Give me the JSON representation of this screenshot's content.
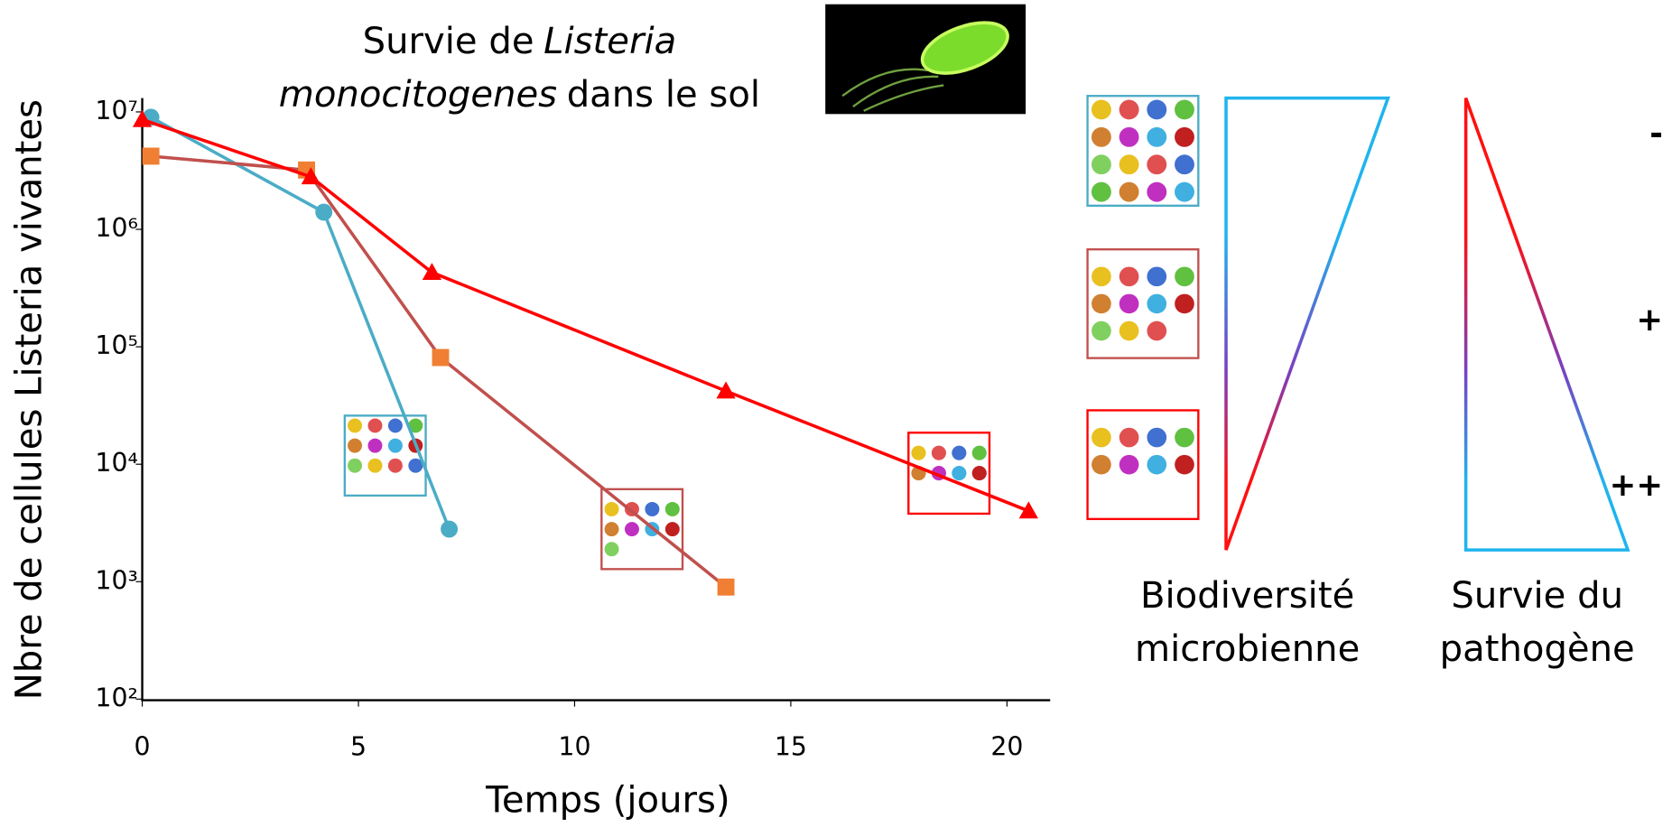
{
  "chart_data": {
    "type": "line",
    "title": [
      "Survie de",
      "Listeria",
      "monocitogenes",
      "dans le sol"
    ],
    "x_label": "Temps (jours)",
    "y_label": "Nbre de cellules Listeria vivantes",
    "log_y": true,
    "xlim": [
      0,
      21
    ],
    "xticks": [
      0,
      5,
      10,
      15,
      20
    ],
    "ylim": [
      100,
      10000000
    ],
    "yticks": [
      {
        "value": 100,
        "label": "10²"
      },
      {
        "value": 1000,
        "label": "10³"
      },
      {
        "value": 10000,
        "label": "10⁴"
      },
      {
        "value": 100000,
        "label": "10⁵"
      },
      {
        "value": 1000000,
        "label": "10⁶"
      },
      {
        "value": 10000000,
        "label": "10⁷"
      }
    ],
    "series": [
      {
        "color": "#4bacc6",
        "marker_color": "#4bacc6",
        "marker": "circle",
        "x": [
          0.2,
          4.2,
          7.1
        ],
        "values": [
          9000000,
          1400000,
          2800
        ]
      },
      {
        "color": "#c0504d",
        "marker_color": "#f07f33",
        "marker": "square",
        "x": [
          0.2,
          3.8,
          6.9,
          13.5
        ],
        "values": [
          4200000,
          3200000,
          81000,
          900
        ]
      },
      {
        "color": "#ff0000",
        "marker_color": "#ff0000",
        "marker": "triangle",
        "x": [
          0,
          3.9,
          6.7,
          13.5,
          20.5
        ],
        "values": [
          8600000,
          2800000,
          430000,
          42000,
          4000
        ]
      }
    ]
  },
  "diagram": {
    "biodiversity": [
      "Biodiversité",
      "microbienne"
    ],
    "survival": [
      "Survie du",
      "pathogène"
    ],
    "levels": [
      "-",
      "+",
      "++"
    ]
  }
}
